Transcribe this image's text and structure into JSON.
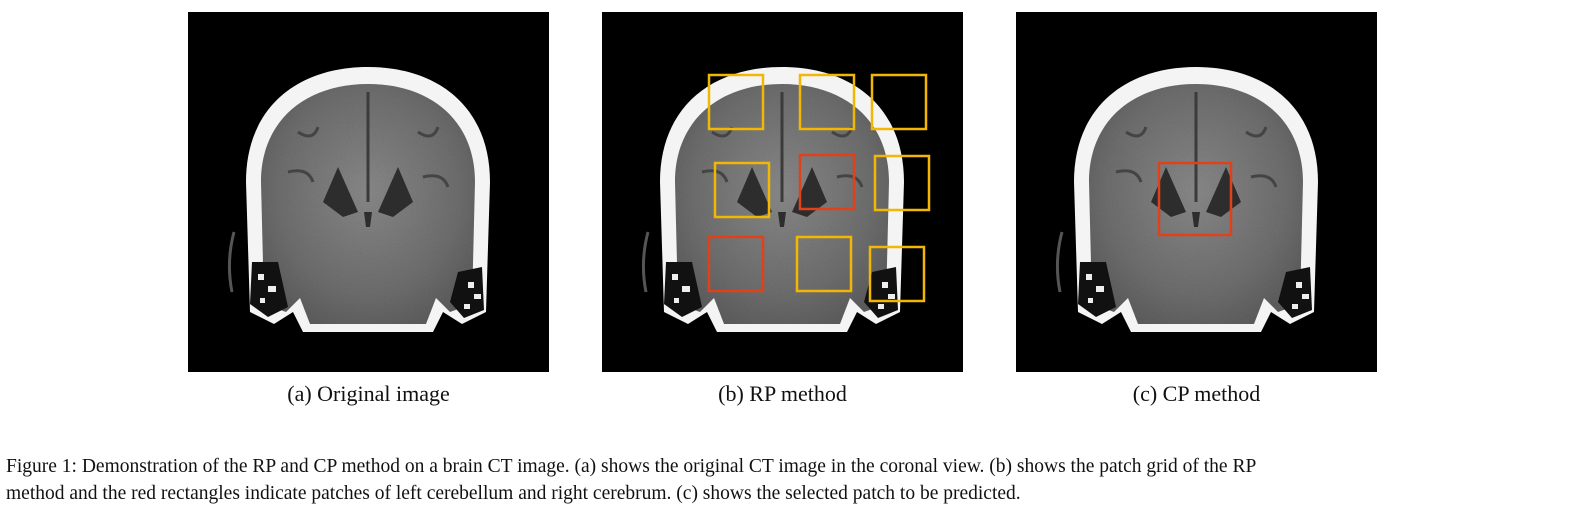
{
  "figure": {
    "panels": [
      {
        "id": "a",
        "caption": "(a) Original image"
      },
      {
        "id": "b",
        "caption": "(b) RP method"
      },
      {
        "id": "c",
        "caption": "(c) CP method"
      }
    ],
    "caption_line1": "Figure 1: Demonstration of the RP and CP method on a brain CT image. (a) shows the original CT image in the coronal view. (b) shows the patch grid of the RP",
    "caption_line2": "method and the red rectangles indicate patches of left cerebellum and right cerebrum. (c) shows the selected patch to be predicted."
  },
  "colors": {
    "patch_default": "#f2b705",
    "patch_selected": "#e0401a",
    "background": "#000000",
    "skull": "#f4f4f4",
    "brain": "#7d7d7d"
  }
}
